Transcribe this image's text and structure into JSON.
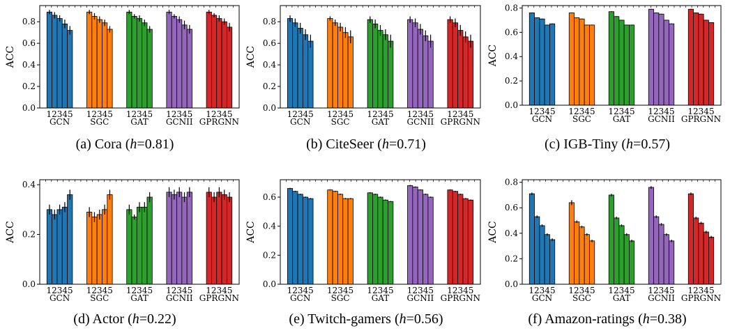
{
  "figure": {
    "models": [
      "GCN",
      "SGC",
      "GAT",
      "GCNII",
      "GPRGNN"
    ],
    "variants": [
      "1",
      "2",
      "3",
      "4",
      "5"
    ],
    "model_colors": [
      "#1f77b4",
      "#ff7f0e",
      "#2ca02c",
      "#9467bd",
      "#d62728"
    ],
    "ylabel": "ACC"
  },
  "chart_data": [
    {
      "type": "bar",
      "caption": {
        "tag": "(a)",
        "dataset": "Cora",
        "h": "0.81"
      },
      "ylim": [
        0,
        0.95
      ],
      "yticks": [
        "0.0",
        "0.2",
        "0.4",
        "0.6",
        "0.8"
      ],
      "ytick_values": [
        0,
        0.2,
        0.4,
        0.6,
        0.8
      ],
      "series": [
        {
          "model": "GCN",
          "values": [
            0.89,
            0.86,
            0.83,
            0.78,
            0.72
          ],
          "errors": [
            0.02,
            0.03,
            0.03,
            0.04,
            0.04
          ]
        },
        {
          "model": "SGC",
          "values": [
            0.89,
            0.85,
            0.82,
            0.79,
            0.73
          ],
          "errors": [
            0.02,
            0.03,
            0.03,
            0.03,
            0.03
          ]
        },
        {
          "model": "GAT",
          "values": [
            0.89,
            0.85,
            0.83,
            0.79,
            0.73
          ],
          "errors": [
            0.02,
            0.02,
            0.03,
            0.03,
            0.03
          ]
        },
        {
          "model": "GCNII",
          "values": [
            0.89,
            0.85,
            0.82,
            0.77,
            0.73
          ],
          "errors": [
            0.02,
            0.02,
            0.03,
            0.04,
            0.04
          ]
        },
        {
          "model": "GPRGNN",
          "values": [
            0.89,
            0.86,
            0.83,
            0.8,
            0.75
          ],
          "errors": [
            0.02,
            0.02,
            0.03,
            0.03,
            0.04
          ]
        }
      ]
    },
    {
      "type": "bar",
      "caption": {
        "tag": "(b)",
        "dataset": "CiteSeer",
        "h": "0.71"
      },
      "ylim": [
        0,
        0.95
      ],
      "yticks": [
        "0.0",
        "0.2",
        "0.4",
        "0.6",
        "0.8"
      ],
      "ytick_values": [
        0,
        0.2,
        0.4,
        0.6,
        0.8
      ],
      "series": [
        {
          "model": "GCN",
          "values": [
            0.83,
            0.79,
            0.74,
            0.68,
            0.62
          ],
          "errors": [
            0.03,
            0.04,
            0.05,
            0.05,
            0.06
          ]
        },
        {
          "model": "SGC",
          "values": [
            0.83,
            0.79,
            0.75,
            0.7,
            0.66
          ],
          "errors": [
            0.02,
            0.03,
            0.04,
            0.05,
            0.06
          ]
        },
        {
          "model": "GAT",
          "values": [
            0.82,
            0.78,
            0.72,
            0.68,
            0.62
          ],
          "errors": [
            0.03,
            0.04,
            0.05,
            0.05,
            0.06
          ]
        },
        {
          "model": "GCNII",
          "values": [
            0.82,
            0.79,
            0.73,
            0.67,
            0.62
          ],
          "errors": [
            0.03,
            0.04,
            0.05,
            0.05,
            0.06
          ]
        },
        {
          "model": "GPRGNN",
          "values": [
            0.82,
            0.79,
            0.72,
            0.66,
            0.62
          ],
          "errors": [
            0.03,
            0.04,
            0.05,
            0.05,
            0.06
          ]
        }
      ]
    },
    {
      "type": "bar",
      "caption": {
        "tag": "(c)",
        "dataset": "IGB-Tiny",
        "h": "0.57"
      },
      "ylim": [
        0,
        0.82
      ],
      "yticks": [
        "0.0",
        "0.2",
        "0.4",
        "0.6",
        "0.8"
      ],
      "ytick_values": [
        0,
        0.2,
        0.4,
        0.6,
        0.8
      ],
      "series": [
        {
          "model": "GCN",
          "values": [
            0.76,
            0.72,
            0.71,
            0.66,
            0.67
          ],
          "errors": [
            0.003,
            0.003,
            0.003,
            0.003,
            0.003
          ]
        },
        {
          "model": "SGC",
          "values": [
            0.76,
            0.72,
            0.71,
            0.66,
            0.66
          ],
          "errors": [
            0.003,
            0.003,
            0.003,
            0.003,
            0.003
          ]
        },
        {
          "model": "GAT",
          "values": [
            0.77,
            0.73,
            0.7,
            0.66,
            0.66
          ],
          "errors": [
            0.003,
            0.003,
            0.003,
            0.003,
            0.003
          ]
        },
        {
          "model": "GCNII",
          "values": [
            0.79,
            0.76,
            0.75,
            0.7,
            0.67
          ],
          "errors": [
            0.003,
            0.003,
            0.003,
            0.003,
            0.003
          ]
        },
        {
          "model": "GPRGNN",
          "values": [
            0.79,
            0.76,
            0.75,
            0.7,
            0.68
          ],
          "errors": [
            0.003,
            0.003,
            0.003,
            0.003,
            0.003
          ]
        }
      ]
    },
    {
      "type": "bar",
      "caption": {
        "tag": "(d)",
        "dataset": "Actor",
        "h": "0.22"
      },
      "ylim": [
        0,
        0.42
      ],
      "yticks": [
        "0.0",
        "0.2",
        "0.4"
      ],
      "ytick_values": [
        0,
        0.2,
        0.4
      ],
      "series": [
        {
          "model": "GCN",
          "values": [
            0.3,
            0.28,
            0.3,
            0.31,
            0.36
          ],
          "errors": [
            0.02,
            0.02,
            0.02,
            0.02,
            0.02
          ]
        },
        {
          "model": "SGC",
          "values": [
            0.29,
            0.27,
            0.28,
            0.3,
            0.36
          ],
          "errors": [
            0.02,
            0.02,
            0.02,
            0.02,
            0.02
          ]
        },
        {
          "model": "GAT",
          "values": [
            0.3,
            0.27,
            0.31,
            0.31,
            0.35
          ],
          "errors": [
            0.02,
            0.01,
            0.02,
            0.02,
            0.02
          ]
        },
        {
          "model": "GCNII",
          "values": [
            0.37,
            0.36,
            0.37,
            0.35,
            0.37
          ],
          "errors": [
            0.02,
            0.02,
            0.02,
            0.02,
            0.02
          ]
        },
        {
          "model": "GPRGNN",
          "values": [
            0.37,
            0.35,
            0.37,
            0.36,
            0.35
          ],
          "errors": [
            0.02,
            0.02,
            0.02,
            0.02,
            0.02
          ]
        }
      ]
    },
    {
      "type": "bar",
      "caption": {
        "tag": "(e)",
        "dataset": "Twitch-gamers",
        "h": "0.56"
      },
      "ylim": [
        0,
        0.72
      ],
      "yticks": [
        "0.0",
        "0.2",
        "0.4",
        "0.6"
      ],
      "ytick_values": [
        0,
        0.2,
        0.4,
        0.6
      ],
      "series": [
        {
          "model": "GCN",
          "values": [
            0.66,
            0.64,
            0.62,
            0.6,
            0.59
          ],
          "errors": [
            0.004,
            0.004,
            0.004,
            0.004,
            0.004
          ]
        },
        {
          "model": "SGC",
          "values": [
            0.65,
            0.64,
            0.62,
            0.59,
            0.59
          ],
          "errors": [
            0.004,
            0.004,
            0.004,
            0.004,
            0.004
          ]
        },
        {
          "model": "GAT",
          "values": [
            0.63,
            0.62,
            0.6,
            0.58,
            0.57
          ],
          "errors": [
            0.004,
            0.004,
            0.004,
            0.004,
            0.004
          ]
        },
        {
          "model": "GCNII",
          "values": [
            0.68,
            0.67,
            0.65,
            0.62,
            0.6
          ],
          "errors": [
            0.004,
            0.004,
            0.004,
            0.004,
            0.004
          ]
        },
        {
          "model": "GPRGNN",
          "values": [
            0.65,
            0.64,
            0.62,
            0.59,
            0.58
          ],
          "errors": [
            0.004,
            0.004,
            0.004,
            0.004,
            0.004
          ]
        }
      ]
    },
    {
      "type": "bar",
      "caption": {
        "tag": "(f)",
        "dataset": "Amazon-ratings",
        "h": "0.38"
      },
      "ylim": [
        0,
        0.82
      ],
      "yticks": [
        "0.0",
        "0.2",
        "0.4",
        "0.6",
        "0.8"
      ],
      "ytick_values": [
        0,
        0.2,
        0.4,
        0.6,
        0.8
      ],
      "series": [
        {
          "model": "GCN",
          "values": [
            0.71,
            0.53,
            0.46,
            0.39,
            0.35
          ],
          "errors": [
            0.01,
            0.01,
            0.01,
            0.01,
            0.01
          ]
        },
        {
          "model": "SGC",
          "values": [
            0.64,
            0.49,
            0.45,
            0.39,
            0.34
          ],
          "errors": [
            0.02,
            0.01,
            0.01,
            0.01,
            0.01
          ]
        },
        {
          "model": "GAT",
          "values": [
            0.7,
            0.52,
            0.46,
            0.39,
            0.34
          ],
          "errors": [
            0.01,
            0.01,
            0.01,
            0.01,
            0.01
          ]
        },
        {
          "model": "GCNII",
          "values": [
            0.76,
            0.53,
            0.47,
            0.39,
            0.34
          ],
          "errors": [
            0.01,
            0.01,
            0.01,
            0.01,
            0.01
          ]
        },
        {
          "model": "GPRGNN",
          "values": [
            0.71,
            0.52,
            0.48,
            0.41,
            0.37
          ],
          "errors": [
            0.01,
            0.01,
            0.01,
            0.01,
            0.01
          ]
        }
      ]
    }
  ]
}
